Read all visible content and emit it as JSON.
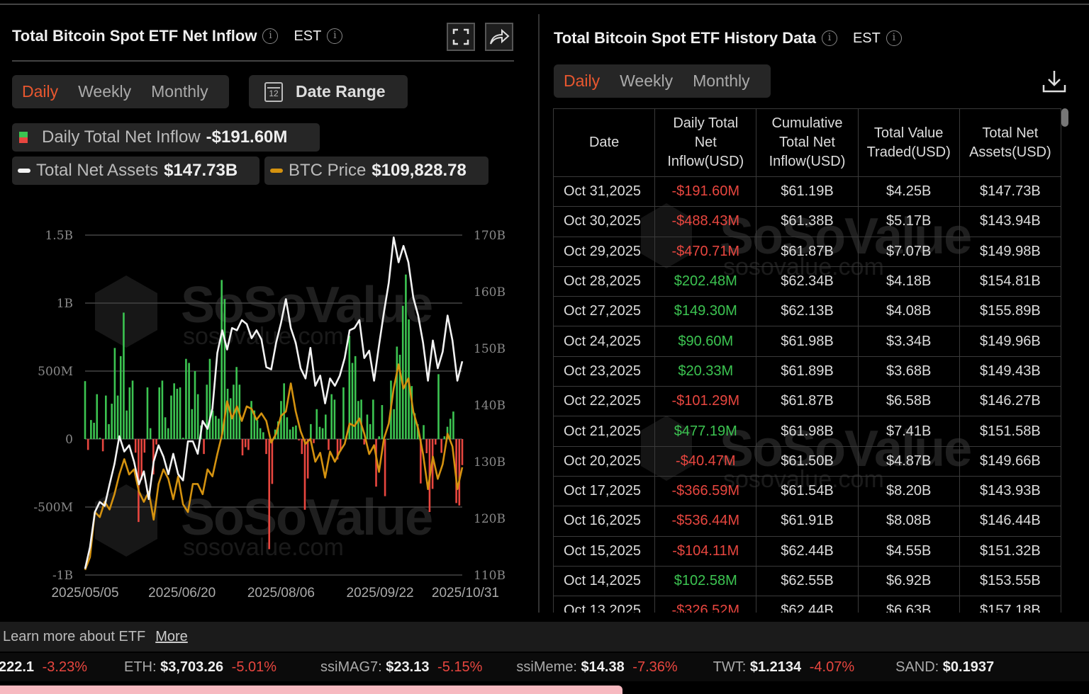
{
  "left_panel": {
    "title": "Total Bitcoin Spot ETF Net Inflow",
    "timezone": "EST",
    "tabs": [
      "Daily",
      "Weekly",
      "Monthly"
    ],
    "active_tab": "Daily",
    "date_range_label": "Date Range",
    "calendar_day": "12",
    "legend": {
      "inflow_label": "Daily Total Net Inflow",
      "inflow_value": "-$191.60M",
      "assets_label": "Total Net Assets",
      "assets_value": "$147.73B",
      "price_label": "BTC Price",
      "price_value": "$109,828.78"
    },
    "watermark": "SoSoValue",
    "watermark_url": "sosovalue.com"
  },
  "chart_data": {
    "type": "bar+line",
    "left_axis": {
      "ticks": [
        "1.5B",
        "1B",
        "500M",
        "0",
        "-500M",
        "-1B"
      ],
      "range_millions": [
        -1000,
        1500
      ]
    },
    "right_axis": {
      "ticks": [
        "170B",
        "160B",
        "150B",
        "140B",
        "130B",
        "120B",
        "110B"
      ],
      "range_billions": [
        110,
        170
      ]
    },
    "x_ticks": [
      "2025/05/05",
      "2025/06/20",
      "2025/08/06",
      "2025/09/22",
      "2025/10/31"
    ],
    "x_range": [
      "2025/05/05",
      "2025/10/31"
    ],
    "colors": {
      "positive": "#3cc451",
      "negative": "#e8463f",
      "net_assets": "#f2f2f2",
      "btc_price": "#d4920f"
    },
    "grid": true,
    "series": [
      {
        "name": "Daily Total Net Inflow",
        "unit": "USD millions",
        "values": [
          426,
          -80,
          140,
          120,
          330,
          10,
          -90,
          320,
          110,
          260,
          670,
          320,
          610,
          930,
          210,
          380,
          430,
          -100,
          -610,
          -300,
          -100,
          380,
          80,
          -260,
          -40,
          380,
          430,
          160,
          80,
          320,
          410,
          370,
          380,
          10,
          590,
          560,
          220,
          500,
          330,
          100,
          -110,
          400,
          590,
          210,
          170,
          150,
          1170,
          1030,
          370,
          300,
          400,
          530,
          400,
          -120,
          -60,
          -80,
          280,
          210,
          140,
          80,
          50,
          -110,
          -810,
          -330,
          70,
          130,
          280,
          410,
          160,
          70,
          90,
          100,
          -10,
          -110,
          -520,
          -290,
          110,
          -30,
          220,
          90,
          80,
          180,
          -80,
          330,
          290,
          -150,
          -90,
          380,
          20,
          760,
          560,
          610,
          280,
          290,
          -40,
          180,
          110,
          290,
          -350,
          20,
          250,
          -420,
          0,
          430,
          220,
          680,
          620,
          980,
          1210,
          880,
          390,
          190,
          110,
          -326.52,
          102.58,
          -104.11,
          -536.44,
          -366.59,
          -40.47,
          477.19,
          -101.29,
          20.33,
          90.6,
          149.3,
          202.48,
          -470.71,
          -488.43,
          -191.6
        ]
      },
      {
        "name": "Total Net Assets",
        "unit": "USD billions",
        "values": [
          111.1,
          114.9,
          121.1,
          122.9,
          122.2,
          126.0,
          129.6,
          134.5,
          131.8,
          132.9,
          130.0,
          126.0,
          128.3,
          123.4,
          130.0,
          132.9,
          130.9,
          127.8,
          131.4,
          127.8,
          126.7,
          133.6,
          133.6,
          131.4,
          137.2,
          135.8,
          139.4,
          149.2,
          153.2,
          149.8,
          153.6,
          153.2,
          155.0,
          154.3,
          151.8,
          153.2,
          151.6,
          146.7,
          146.3,
          151.0,
          154.5,
          158.7,
          153.6,
          151.0,
          146.5,
          144.7,
          150.1,
          143.4,
          145.2,
          140.3,
          144.7,
          143.4,
          145.2,
          148.3,
          153.2,
          153.6,
          155.0,
          148.3,
          149.6,
          144.3,
          150.5,
          156.3,
          161.6,
          169.6,
          165.2,
          168.1,
          165.2,
          159.0,
          155.8,
          151.0,
          144.3,
          151.4,
          146.5,
          149.4,
          155.8,
          151.4,
          144.3,
          147.73
        ]
      },
      {
        "name": "BTC Price",
        "unit": "USD",
        "values": [
          93700,
          95700,
          102800,
          102000,
          104400,
          103200,
          105600,
          108700,
          111100,
          108700,
          109500,
          106000,
          104400,
          106000,
          101600,
          107200,
          109500,
          108000,
          104800,
          108400,
          104000,
          102800,
          107200,
          107200,
          105600,
          109500,
          108400,
          111900,
          115100,
          120200,
          117500,
          119400,
          117100,
          119400,
          119000,
          117300,
          118300,
          117100,
          113700,
          115100,
          117900,
          118600,
          123000,
          118600,
          115500,
          113500,
          114300,
          110700,
          112100,
          108200,
          112300,
          110700,
          112300,
          113500,
          116700,
          116300,
          117500,
          115100,
          111900,
          113300,
          109100,
          114300,
          116700,
          122200,
          126000,
          122200,
          123800,
          118600,
          115900,
          111900,
          106400,
          111500,
          108000,
          110300,
          115100,
          113100,
          106400,
          109828.78
        ]
      }
    ]
  },
  "right_panel": {
    "title": "Total Bitcoin Spot ETF History Data",
    "timezone": "EST",
    "tabs": [
      "Daily",
      "Weekly",
      "Monthly"
    ],
    "active_tab": "Daily",
    "columns": [
      "Date",
      "Daily Total Net Inflow(USD)",
      "Cumulative Total Net Inflow(USD)",
      "Total Value Traded(USD)",
      "Total Net Assets(USD)"
    ],
    "rows": [
      [
        "Oct 31,2025",
        "-$191.60M",
        "$61.19B",
        "$4.25B",
        "$147.73B"
      ],
      [
        "Oct 30,2025",
        "-$488.43M",
        "$61.38B",
        "$5.17B",
        "$143.94B"
      ],
      [
        "Oct 29,2025",
        "-$470.71M",
        "$61.87B",
        "$7.07B",
        "$149.98B"
      ],
      [
        "Oct 28,2025",
        "$202.48M",
        "$62.34B",
        "$4.18B",
        "$154.81B"
      ],
      [
        "Oct 27,2025",
        "$149.30M",
        "$62.13B",
        "$4.08B",
        "$155.89B"
      ],
      [
        "Oct 24,2025",
        "$90.60M",
        "$61.98B",
        "$3.34B",
        "$149.96B"
      ],
      [
        "Oct 23,2025",
        "$20.33M",
        "$61.89B",
        "$3.68B",
        "$149.43B"
      ],
      [
        "Oct 22,2025",
        "-$101.29M",
        "$61.87B",
        "$6.58B",
        "$146.27B"
      ],
      [
        "Oct 21,2025",
        "$477.19M",
        "$61.98B",
        "$7.41B",
        "$151.58B"
      ],
      [
        "Oct 20,2025",
        "-$40.47M",
        "$61.50B",
        "$4.87B",
        "$149.66B"
      ],
      [
        "Oct 17,2025",
        "-$366.59M",
        "$61.54B",
        "$8.20B",
        "$143.93B"
      ],
      [
        "Oct 16,2025",
        "-$536.44M",
        "$61.91B",
        "$8.08B",
        "$146.44B"
      ],
      [
        "Oct 15,2025",
        "-$104.11M",
        "$62.44B",
        "$4.55B",
        "$151.32B"
      ],
      [
        "Oct 14,2025",
        "$102.58M",
        "$62.55B",
        "$6.92B",
        "$153.55B"
      ],
      [
        "Oct 13,2025",
        "-$326.52M",
        "$62.44B",
        "$6.63B",
        "$157.18B"
      ]
    ]
  },
  "footer": {
    "learn_text": "Learn more about ETF",
    "more_link": "More",
    "ticker": [
      {
        "label": "",
        "price": "222.1",
        "change": "-3.23%"
      },
      {
        "label": "ETH:",
        "price": "$3,703.26",
        "change": "-5.01%"
      },
      {
        "label": "ssiMAG7:",
        "price": "$23.13",
        "change": "-5.15%"
      },
      {
        "label": "ssiMeme:",
        "price": "$14.38",
        "change": "-7.36%"
      },
      {
        "label": "TWT:",
        "price": "$1.2134",
        "change": "-4.07%"
      },
      {
        "label": "SAND:",
        "price": "$0.1937",
        "change": ""
      }
    ]
  }
}
